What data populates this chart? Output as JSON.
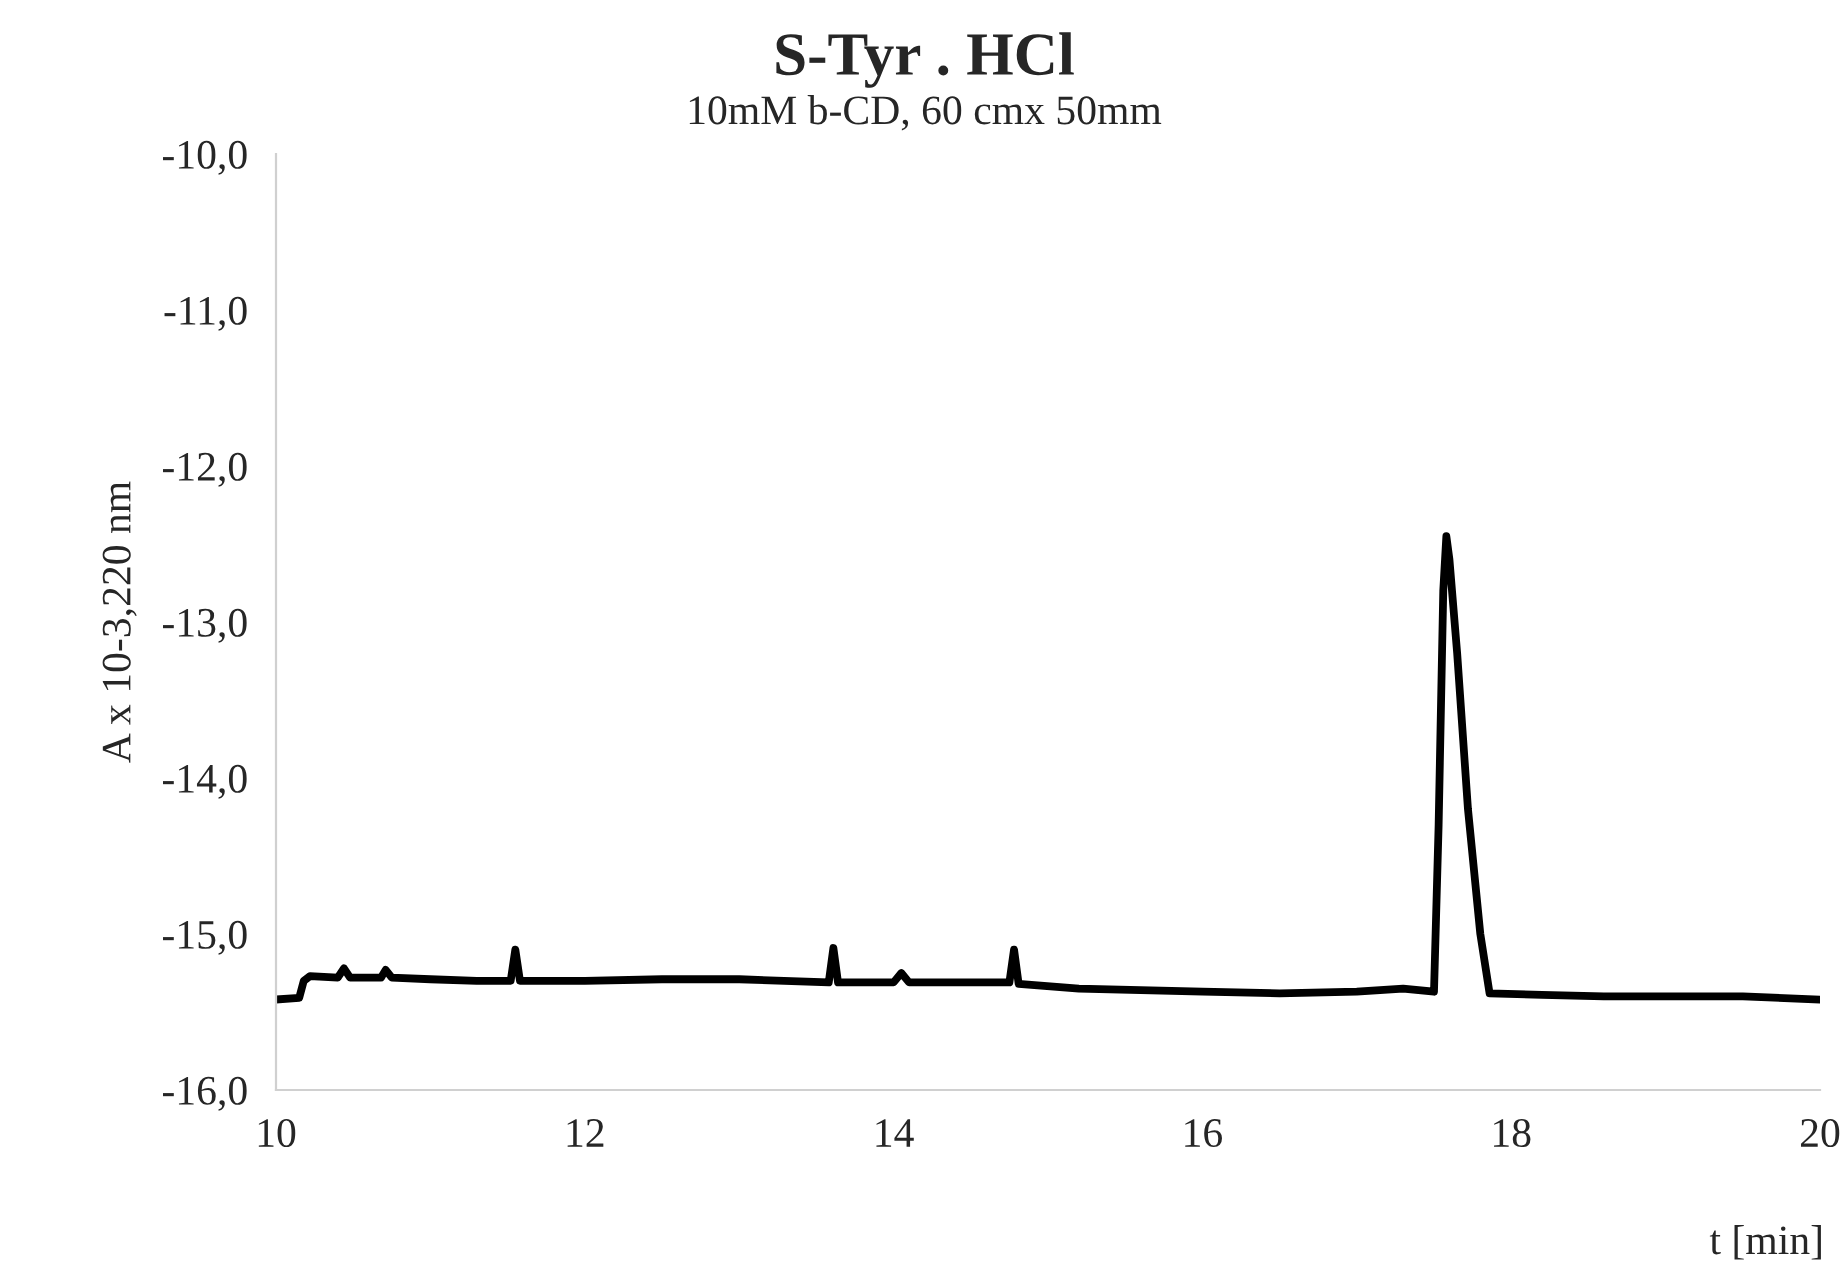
{
  "chart_data": {
    "type": "line",
    "title": "S-Tyr . HCl",
    "subtitle": "10mM b-CD, 60 cmx 50mm",
    "xlabel": "t [min]",
    "ylabel": "A x 10-3,220 nm",
    "x": [
      10.0,
      10.15,
      10.18,
      10.22,
      10.4,
      10.44,
      10.48,
      10.68,
      10.71,
      10.75,
      11.0,
      11.3,
      11.52,
      11.55,
      11.58,
      12.0,
      12.5,
      13.0,
      13.58,
      13.61,
      13.64,
      14.0,
      14.05,
      14.1,
      14.5,
      14.75,
      14.78,
      14.81,
      15.2,
      16.0,
      16.5,
      17.0,
      17.3,
      17.5,
      17.53,
      17.56,
      17.58,
      17.6,
      17.65,
      17.72,
      17.8,
      17.86,
      18.2,
      18.6,
      19.0,
      19.5,
      20.0
    ],
    "series": [
      {
        "color": "#000000",
        "values": [
          -15.42,
          -15.41,
          -15.3,
          -15.27,
          -15.28,
          -15.22,
          -15.28,
          -15.28,
          -15.23,
          -15.28,
          -15.29,
          -15.3,
          -15.3,
          -15.1,
          -15.3,
          -15.3,
          -15.29,
          -15.29,
          -15.31,
          -15.09,
          -15.31,
          -15.31,
          -15.25,
          -15.31,
          -15.31,
          -15.31,
          -15.1,
          -15.32,
          -15.35,
          -15.37,
          -15.38,
          -15.37,
          -15.35,
          -15.37,
          -14.3,
          -12.8,
          -12.45,
          -12.6,
          -13.2,
          -14.2,
          -15.0,
          -15.38,
          -15.39,
          -15.4,
          -15.4,
          -15.4,
          -15.42
        ]
      }
    ],
    "xlim": [
      10,
      20
    ],
    "xticks": [
      10,
      12,
      14,
      16,
      18,
      20
    ],
    "ylim": [
      -16,
      -10
    ],
    "yticks": [
      {
        "value": -16,
        "label": "-16,0"
      },
      {
        "value": -15,
        "label": "-15,0"
      },
      {
        "value": -14,
        "label": "-14,0"
      },
      {
        "value": -13,
        "label": "-13,0"
      },
      {
        "value": -12,
        "label": "-12,0"
      },
      {
        "value": -11,
        "label": "-11,0"
      },
      {
        "value": -10,
        "label": "-10,0"
      }
    ],
    "grid": false,
    "legend": false,
    "marker": "none",
    "line_style": "solid"
  }
}
